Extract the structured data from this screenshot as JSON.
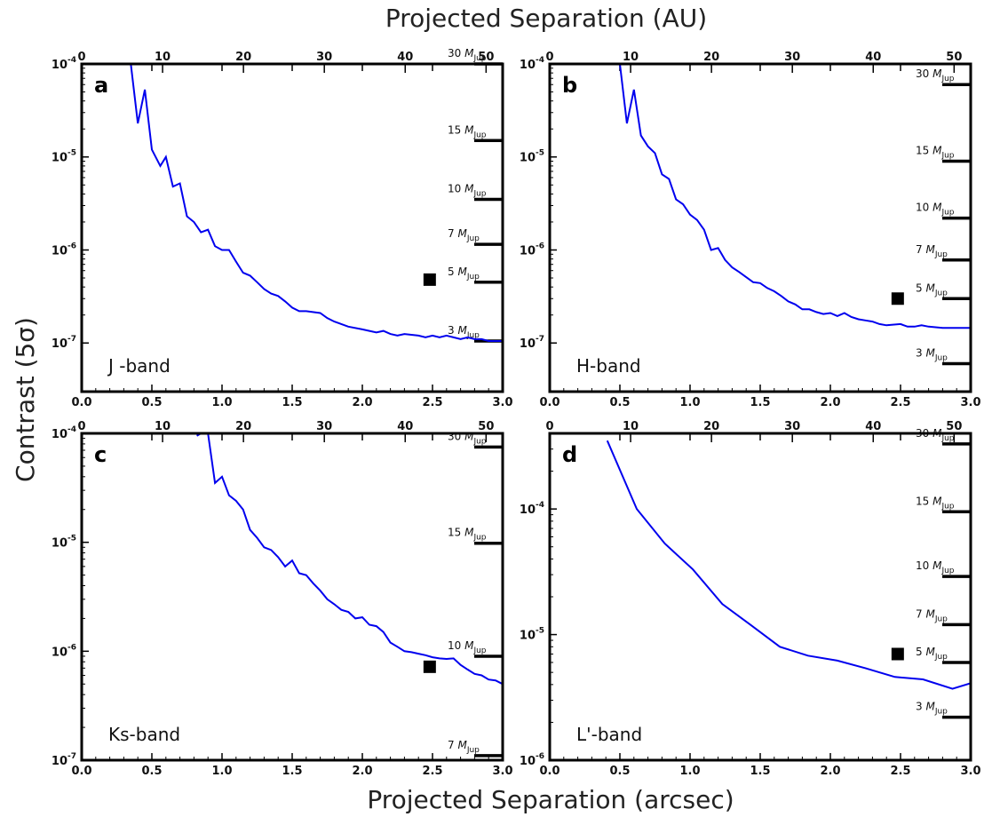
{
  "figure": {
    "xlabel_top": "Projected Separation (AU)",
    "xlabel_bottom": "Projected Separation (arcsec)",
    "ylabel": "Contrast (5σ)"
  },
  "chart_data": [
    {
      "type": "line",
      "panel": "a",
      "band": "J -band",
      "xlim": [
        0,
        3
      ],
      "ylim": [
        3e-08,
        0.0001
      ],
      "yscale": "log",
      "x_ticks": [
        "0.0",
        "0.5",
        "1.0",
        "1.5",
        "2.0",
        "2.5",
        "3.0"
      ],
      "x_top_ticks": [
        "0",
        "10",
        "20",
        "30",
        "40",
        "50"
      ],
      "y_ticks": [
        {
          "value": 0.0001,
          "label": "10-4"
        },
        {
          "value": 1e-05,
          "label": "10-5"
        },
        {
          "value": 1e-06,
          "label": "10-6"
        },
        {
          "value": 1e-07,
          "label": "10-7"
        }
      ],
      "series": [
        {
          "color": "#0000ee",
          "x": [
            0.35,
            0.4,
            0.45,
            0.5,
            0.56,
            0.6,
            0.65,
            0.7,
            0.75,
            0.8,
            0.85,
            0.9,
            0.95,
            1.0,
            1.05,
            1.1,
            1.15,
            1.2,
            1.25,
            1.3,
            1.35,
            1.4,
            1.45,
            1.5,
            1.55,
            1.6,
            1.7,
            1.75,
            1.8,
            1.85,
            1.9,
            2.0,
            2.05,
            2.1,
            2.15,
            2.2,
            2.25,
            2.3,
            2.4,
            2.45,
            2.5,
            2.55,
            2.6,
            2.65,
            2.7,
            2.75,
            2.8,
            2.85,
            2.9,
            3.0
          ],
          "y": [
            0.0001,
            2.3e-05,
            5.3e-05,
            1.2e-05,
            8e-06,
            1e-05,
            4.8e-06,
            5.2e-06,
            2.3e-06,
            2e-06,
            1.55e-06,
            1.65e-06,
            1.1e-06,
            1e-06,
            1e-06,
            7.5e-07,
            5.7e-07,
            5.3e-07,
            4.5e-07,
            3.8e-07,
            3.4e-07,
            3.2e-07,
            2.8e-07,
            2.4e-07,
            2.2e-07,
            2.2e-07,
            2.1e-07,
            1.85e-07,
            1.7e-07,
            1.6e-07,
            1.5e-07,
            1.4e-07,
            1.35e-07,
            1.3e-07,
            1.35e-07,
            1.25e-07,
            1.2e-07,
            1.25e-07,
            1.2e-07,
            1.15e-07,
            1.2e-07,
            1.15e-07,
            1.2e-07,
            1.15e-07,
            1.1e-07,
            1.15e-07,
            1.1e-07,
            1.1e-07,
            1.05e-07,
            1.05e-07
          ]
        }
      ],
      "marker": {
        "x": 2.48,
        "y": 4.8e-07,
        "shape": "square",
        "color": "#000000"
      },
      "mass_limits": [
        {
          "label": "30",
          "unit": "M",
          "sub": "Jup",
          "y": 0.0001
        },
        {
          "label": "15",
          "unit": "M",
          "sub": "Jup",
          "y": 1.5e-05
        },
        {
          "label": "10",
          "unit": "M",
          "sub": "Jup",
          "y": 3.5e-06
        },
        {
          "label": "7",
          "unit": "M",
          "sub": "Jup",
          "y": 1.15e-06
        },
        {
          "label": "5",
          "unit": "M",
          "sub": "Jup",
          "y": 4.5e-07
        },
        {
          "label": "3",
          "unit": "M",
          "sub": "Jup",
          "y": 1.05e-07
        }
      ]
    },
    {
      "type": "line",
      "panel": "b",
      "band": "H-band",
      "xlim": [
        0,
        3
      ],
      "ylim": [
        3e-08,
        0.0001
      ],
      "yscale": "log",
      "x_ticks": [
        "0.0",
        "0.5",
        "1.0",
        "1.5",
        "2.0",
        "2.5",
        "3.0"
      ],
      "x_top_ticks": [
        "0",
        "10",
        "20",
        "30",
        "40",
        "50"
      ],
      "y_ticks": [
        {
          "value": 0.0001,
          "label": "10-4"
        },
        {
          "value": 1e-05,
          "label": "10-5"
        },
        {
          "value": 1e-06,
          "label": "10-6"
        },
        {
          "value": 1e-07,
          "label": "10-7"
        }
      ],
      "series": [
        {
          "color": "#0000ee",
          "x": [
            0.5,
            0.55,
            0.6,
            0.65,
            0.7,
            0.75,
            0.8,
            0.85,
            0.9,
            0.95,
            1.0,
            1.05,
            1.1,
            1.15,
            1.2,
            1.25,
            1.3,
            1.35,
            1.4,
            1.45,
            1.5,
            1.55,
            1.6,
            1.65,
            1.7,
            1.75,
            1.8,
            1.85,
            1.9,
            1.95,
            2.0,
            2.05,
            2.1,
            2.15,
            2.2,
            2.25,
            2.3,
            2.35,
            2.4,
            2.5,
            2.55,
            2.6,
            2.65,
            2.7,
            2.8,
            2.9,
            3.0
          ],
          "y": [
            0.0001,
            2.3e-05,
            5.3e-05,
            1.7e-05,
            1.3e-05,
            1.1e-05,
            6.5e-06,
            5.8e-06,
            3.5e-06,
            3.1e-06,
            2.4e-06,
            2.1e-06,
            1.65e-06,
            1e-06,
            1.05e-06,
            7.8e-07,
            6.5e-07,
            5.8e-07,
            5.1e-07,
            4.5e-07,
            4.4e-07,
            3.9e-07,
            3.6e-07,
            3.2e-07,
            2.8e-07,
            2.6e-07,
            2.3e-07,
            2.3e-07,
            2.15e-07,
            2.05e-07,
            2.1e-07,
            1.95e-07,
            2.1e-07,
            1.9e-07,
            1.8e-07,
            1.75e-07,
            1.7e-07,
            1.6e-07,
            1.55e-07,
            1.6e-07,
            1.5e-07,
            1.5e-07,
            1.55e-07,
            1.5e-07,
            1.45e-07,
            1.45e-07,
            1.45e-07
          ]
        }
      ],
      "marker": {
        "x": 2.48,
        "y": 3e-07,
        "shape": "square",
        "color": "#000000"
      },
      "mass_limits": [
        {
          "label": "30",
          "unit": "M",
          "sub": "Jup",
          "y": 6e-05
        },
        {
          "label": "15",
          "unit": "M",
          "sub": "Jup",
          "y": 9e-06
        },
        {
          "label": "10",
          "unit": "M",
          "sub": "Jup",
          "y": 2.2e-06
        },
        {
          "label": "7",
          "unit": "M",
          "sub": "Jup",
          "y": 7.8e-07
        },
        {
          "label": "5",
          "unit": "M",
          "sub": "Jup",
          "y": 3e-07
        },
        {
          "label": "3",
          "unit": "M",
          "sub": "Jup",
          "y": 6e-08
        }
      ]
    },
    {
      "type": "line",
      "panel": "c",
      "band": "Ks-band",
      "xlim": [
        0,
        3
      ],
      "ylim": [
        1e-07,
        0.0001
      ],
      "yscale": "log",
      "x_ticks": [
        "0.0",
        "0.5",
        "1.0",
        "1.5",
        "2.0",
        "2.5",
        "3.0"
      ],
      "x_top_ticks": [
        "0",
        "10",
        "20",
        "30",
        "40",
        "50"
      ],
      "y_ticks": [
        {
          "value": 0.0001,
          "label": "10-4"
        },
        {
          "value": 1e-05,
          "label": "10-5"
        },
        {
          "value": 1e-06,
          "label": "10-6"
        },
        {
          "value": 1e-07,
          "label": "10-7"
        }
      ],
      "series": [
        {
          "color": "#0000ee",
          "x": [
            0.82,
            0.85,
            0.9,
            0.95,
            1.0,
            1.05,
            1.1,
            1.15,
            1.2,
            1.25,
            1.3,
            1.35,
            1.4,
            1.45,
            1.5,
            1.55,
            1.6,
            1.65,
            1.7,
            1.75,
            1.8,
            1.85,
            1.9,
            1.95,
            2.0,
            2.05,
            2.1,
            2.15,
            2.2,
            2.25,
            2.3,
            2.35,
            2.4,
            2.45,
            2.5,
            2.55,
            2.6,
            2.65,
            2.7,
            2.75,
            2.8,
            2.85,
            2.9,
            2.95,
            3.0
          ],
          "y": [
            9.5e-05,
            0.0001,
            0.0001,
            3.5e-05,
            4e-05,
            2.7e-05,
            2.4e-05,
            2e-05,
            1.3e-05,
            1.1e-05,
            9e-06,
            8.5e-06,
            7.3e-06,
            6e-06,
            6.8e-06,
            5.2e-06,
            5e-06,
            4.2e-06,
            3.6e-06,
            3e-06,
            2.7e-06,
            2.4e-06,
            2.3e-06,
            2e-06,
            2.05e-06,
            1.75e-06,
            1.7e-06,
            1.5e-06,
            1.2e-06,
            1.1e-06,
            1e-06,
            9.8e-07,
            9.5e-07,
            9.2e-07,
            8.8e-07,
            8.6e-07,
            8.5e-07,
            8.6e-07,
            7.5e-07,
            6.8e-07,
            6.2e-07,
            6e-07,
            5.5e-07,
            5.4e-07,
            5e-07
          ]
        }
      ],
      "marker": {
        "x": 2.48,
        "y": 7.2e-07,
        "shape": "square",
        "color": "#000000"
      },
      "mass_limits": [
        {
          "label": "30",
          "unit": "M",
          "sub": "Jup",
          "y": 7.5e-05
        },
        {
          "label": "15",
          "unit": "M",
          "sub": "Jup",
          "y": 9.8e-06
        },
        {
          "label": "10",
          "unit": "M",
          "sub": "Jup",
          "y": 9e-07
        },
        {
          "label": "7",
          "unit": "M",
          "sub": "Jup",
          "y": 1.1e-07
        }
      ]
    },
    {
      "type": "line",
      "panel": "d",
      "band": "L'-band",
      "xlim": [
        0,
        3
      ],
      "ylim": [
        1e-06,
        0.0004
      ],
      "yscale": "log",
      "x_ticks": [
        "0.0",
        "0.5",
        "1.0",
        "1.5",
        "2.0",
        "2.5",
        "3.0"
      ],
      "x_top_ticks": [
        "0",
        "10",
        "20",
        "30",
        "40",
        "50"
      ],
      "y_ticks": [
        {
          "value": 0.0001,
          "label": "10-4"
        },
        {
          "value": 1e-05,
          "label": "10-5"
        },
        {
          "value": 1e-06,
          "label": "10-6"
        }
      ],
      "series": [
        {
          "color": "#0000ee",
          "x": [
            0.41,
            0.62,
            0.82,
            1.02,
            1.23,
            1.43,
            1.64,
            1.84,
            2.05,
            2.25,
            2.46,
            2.66,
            2.87,
            3.0
          ],
          "y": [
            0.00035,
            0.0001,
            5.3e-05,
            3.3e-05,
            1.75e-05,
            1.2e-05,
            8e-06,
            6.8e-06,
            6.2e-06,
            5.4e-06,
            4.6e-06,
            4.4e-06,
            3.7e-06,
            4.1e-06
          ]
        }
      ],
      "marker": {
        "x": 2.48,
        "y": 7e-06,
        "shape": "square",
        "color": "#000000"
      },
      "mass_limits": [
        {
          "label": "30",
          "unit": "M",
          "sub": "Jup",
          "y": 0.00033
        },
        {
          "label": "15",
          "unit": "M",
          "sub": "Jup",
          "y": 9.5e-05
        },
        {
          "label": "10",
          "unit": "M",
          "sub": "Jup",
          "y": 2.9e-05
        },
        {
          "label": "7",
          "unit": "M",
          "sub": "Jup",
          "y": 1.2e-05
        },
        {
          "label": "5",
          "unit": "M",
          "sub": "Jup",
          "y": 6e-06
        },
        {
          "label": "3",
          "unit": "M",
          "sub": "Jup",
          "y": 2.2e-06
        }
      ]
    }
  ]
}
